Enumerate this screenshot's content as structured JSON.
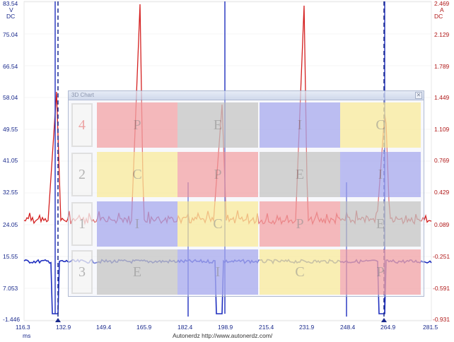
{
  "left_axis": {
    "unit_top": "V",
    "unit_bottom": "DC",
    "ticks": [
      "83.54",
      "75.04",
      "66.54",
      "58.04",
      "49.55",
      "41.05",
      "32.55",
      "24.05",
      "15.55",
      "7.053",
      "-1.446"
    ]
  },
  "right_axis": {
    "unit_top": "A",
    "unit_bottom": "DC",
    "ticks": [
      "2.469",
      "2.129",
      "1.789",
      "1.449",
      "1.109",
      "0.769",
      "0.429",
      "0.089",
      "-0.251",
      "-0.591",
      "-0.931"
    ]
  },
  "bottom_axis": {
    "unit": "ms",
    "ticks": [
      "116.3",
      "132.9",
      "149.4",
      "165.9",
      "182.4",
      "198.9",
      "215.4",
      "231.9",
      "248.4",
      "264.9",
      "281.5"
    ],
    "credit": "Autonerdz   http://www.autonerdz.com/"
  },
  "colors": {
    "red_trace": "#d42020",
    "blue_trace": "#1f2fbf",
    "cursor": "#1a2a8c"
  },
  "overlay": {
    "title": "3D Chart",
    "close_icon": "✕",
    "rows": [
      {
        "cylinder": "4",
        "cells": [
          {
            "letter": "P",
            "color": "red"
          },
          {
            "letter": "E",
            "color": "gray"
          },
          {
            "letter": "I",
            "color": "blue"
          },
          {
            "letter": "C",
            "color": "yellow"
          }
        ]
      },
      {
        "cylinder": "2",
        "cells": [
          {
            "letter": "C",
            "color": "yellow"
          },
          {
            "letter": "P",
            "color": "red"
          },
          {
            "letter": "E",
            "color": "gray"
          },
          {
            "letter": "I",
            "color": "blue"
          }
        ]
      },
      {
        "cylinder": "1",
        "cells": [
          {
            "letter": "I",
            "color": "blue"
          },
          {
            "letter": "C",
            "color": "yellow"
          },
          {
            "letter": "P",
            "color": "red"
          },
          {
            "letter": "E",
            "color": "gray"
          }
        ]
      },
      {
        "cylinder": "3",
        "cells": [
          {
            "letter": "E",
            "color": "gray"
          },
          {
            "letter": "I",
            "color": "blue"
          },
          {
            "letter": "C",
            "color": "yellow"
          },
          {
            "letter": "P",
            "color": "red"
          }
        ]
      }
    ]
  }
}
